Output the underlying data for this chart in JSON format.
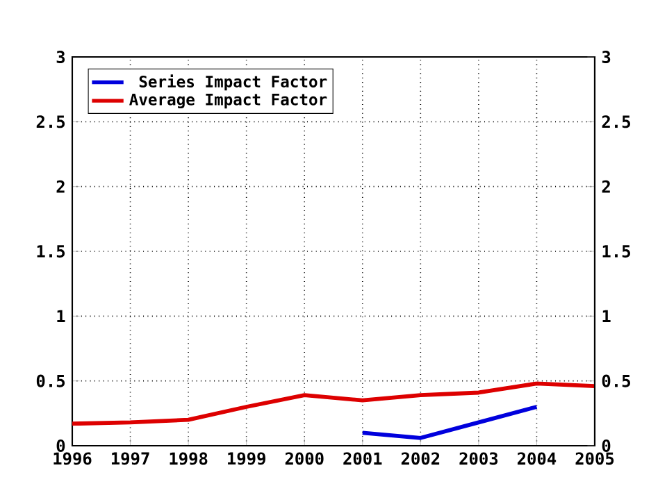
{
  "chart_data": {
    "type": "line",
    "x": [
      1996,
      1997,
      1998,
      1999,
      2000,
      2001,
      2002,
      2003,
      2004,
      2005
    ],
    "series": [
      {
        "name": "Series Impact Factor",
        "color": "#0000dd",
        "values": [
          null,
          null,
          null,
          null,
          null,
          0.1,
          0.06,
          0.18,
          0.3,
          null
        ]
      },
      {
        "name": "Average Impact Factor",
        "color": "#dd0000",
        "values": [
          0.17,
          0.18,
          0.2,
          0.3,
          0.39,
          0.35,
          0.39,
          0.41,
          0.48,
          0.46
        ]
      }
    ],
    "xlim": [
      1996,
      2005
    ],
    "xticks": [
      1996,
      1997,
      1998,
      1999,
      2000,
      2001,
      2002,
      2003,
      2004,
      2005
    ],
    "ylim": [
      0,
      3
    ],
    "yticks": [
      0,
      0.5,
      1,
      1.5,
      2,
      2.5,
      3
    ],
    "y2lim": [
      0,
      3
    ],
    "y2ticks": [
      0,
      0.5,
      1,
      1.5,
      2,
      2.5,
      3
    ],
    "grid": true,
    "legend": "top left",
    "marker": "none",
    "line_style": "solid"
  }
}
